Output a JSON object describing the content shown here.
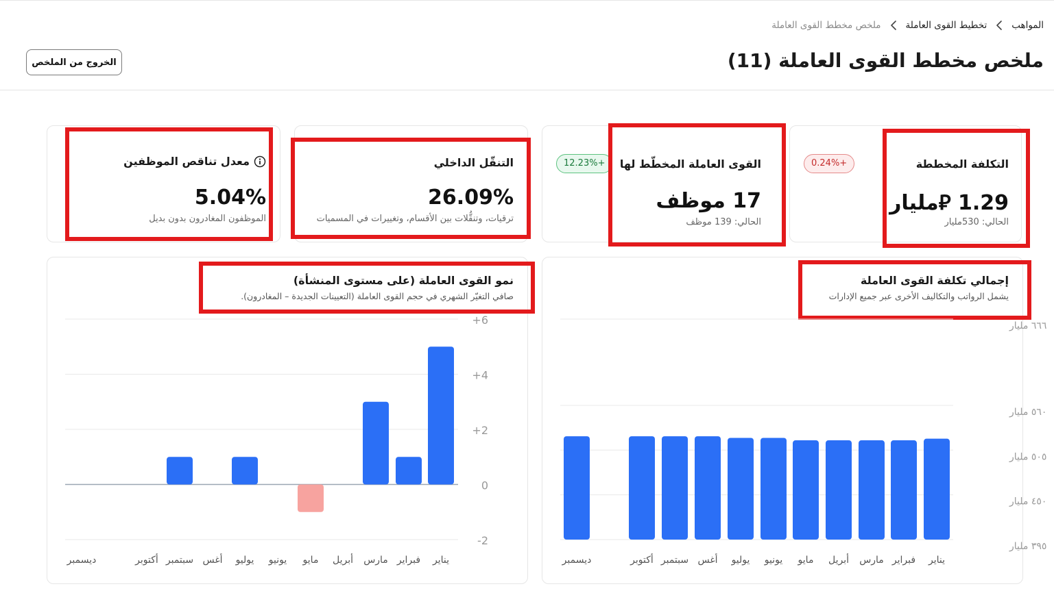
{
  "breadcrumb": {
    "items": [
      "المواهب",
      "تخطيط القوى العاملة",
      "ملخص مخطط القوى العاملة"
    ]
  },
  "header": {
    "title": "ملخص مخطط القوى العاملة (11)",
    "exit_button": "الخروج من الملخص"
  },
  "kpis": {
    "planned_cost": {
      "title": "التكلفة المخططة",
      "value": "1.29 ⃁مليار",
      "sub": "الحالي: 530مليار",
      "badge": "0.24%+"
    },
    "planned_workforce": {
      "title": "القوى العاملة المخطّط لها",
      "value": "17 موظف",
      "sub": "الحالي: 139 موظف",
      "badge": "12.23%+"
    },
    "internal_mobility": {
      "title": "التنقّل الداخلي",
      "value": "26.09%",
      "sub": "ترقيات، وتنقُّلات بين الأقسام، وتغييرات في المسميات"
    },
    "attrition_rate": {
      "title": "معدل تناقص الموظفين",
      "value": "5.04%",
      "sub": "الموظفون المغادرون بدون بديل",
      "info_icon": "info-circle-icon"
    }
  },
  "colors": {
    "bar": "#2b6ff6",
    "negative_bar": "#f7a39f",
    "highlight": "#e31a1c",
    "badge_red": "#c42b2b",
    "badge_green": "#1a7a3b"
  },
  "chart_data": [
    {
      "type": "bar",
      "title": "إجمالي تكلفة القوى العاملة",
      "subtitle": "يشمل الرواتب والتكاليف الأخرى عبر جميع الإدارات",
      "categories": [
        "يناير",
        "فبراير",
        "مارس",
        "أبريل",
        "مايو",
        "يونيو",
        "يوليو",
        "أغس",
        "سبتمبر",
        "أكتوبر",
        "ديسمبر"
      ],
      "values": [
        5.19,
        5.17,
        5.17,
        5.17,
        5.17,
        5.2,
        5.2,
        5.22,
        5.22,
        5.22,
        5.22
      ],
      "yticks": [
        3.95,
        4.5,
        5.05,
        5.6,
        6.66
      ],
      "ytick_labels": [
        "٣٩٥ مليار",
        "٤٥٠ مليار",
        "٥٠٥ مليار",
        "٥٦٠ مليار",
        "٦٦٦ مليار"
      ],
      "ylim": [
        3.95,
        6.66
      ]
    },
    {
      "type": "bar",
      "title": "نمو القوى العاملة (على مستوى المنشأة)",
      "subtitle": "صافي التغيّر الشهري في حجم القوى العاملة (التعيينات الجديدة – المغادرون).",
      "categories": [
        "يناير",
        "فبراير",
        "مارس",
        "أبريل",
        "مايو",
        "يونيو",
        "يوليو",
        "أغس",
        "سبتمبر",
        "أكتوبر",
        "ديسمبر"
      ],
      "values": [
        5,
        1,
        3,
        0,
        -1,
        0,
        1,
        0,
        1,
        0,
        0
      ],
      "yticks": [
        -2,
        0,
        2,
        4,
        6
      ],
      "ytick_labels": [
        "-2",
        "0",
        "+2",
        "+4",
        "+6"
      ],
      "ylim": [
        -2,
        6
      ]
    }
  ]
}
